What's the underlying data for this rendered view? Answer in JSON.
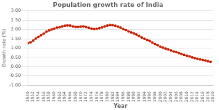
{
  "chart_data": {
    "type": "line",
    "title": "Population growth rate of India",
    "xlabel": "Year",
    "ylabel": "Growth rate (%)",
    "color": "#cc2200",
    "marker": "circle",
    "grid": true,
    "x": [
      1950,
      1951,
      1952,
      1953,
      1954,
      1955,
      1956,
      1957,
      1958,
      1959,
      1960,
      1961,
      1962,
      1963,
      1964,
      1965,
      1966,
      1967,
      1968,
      1969,
      1970,
      1971,
      1972,
      1973,
      1974,
      1975,
      1976,
      1977,
      1978,
      1979,
      1980,
      1981,
      1982,
      1983,
      1984,
      1985,
      1986,
      1987,
      1988,
      1989,
      1990,
      1991,
      1992,
      1993,
      1994,
      1995,
      1996,
      1997,
      1998,
      1999,
      2000,
      2001,
      2002,
      2003,
      2004,
      2005,
      2006,
      2007,
      2008,
      2009,
      2010,
      2011,
      2012,
      2013,
      2014,
      2015,
      2016,
      2017,
      2018,
      2019
    ],
    "values": [
      1.26,
      1.31,
      1.4,
      1.51,
      1.6,
      1.69,
      1.78,
      1.88,
      1.95,
      2.0,
      2.05,
      2.1,
      2.12,
      2.17,
      2.2,
      2.22,
      2.21,
      2.17,
      2.14,
      2.14,
      2.16,
      2.17,
      2.14,
      2.09,
      2.05,
      2.03,
      2.04,
      2.07,
      2.11,
      2.17,
      2.21,
      2.24,
      2.23,
      2.2,
      2.16,
      2.1,
      2.03,
      1.97,
      1.9,
      1.84,
      1.79,
      1.73,
      1.65,
      1.57,
      1.5,
      1.44,
      1.38,
      1.3,
      1.22,
      1.15,
      1.08,
      1.02,
      0.97,
      0.93,
      0.87,
      0.82,
      0.78,
      0.73,
      0.68,
      0.63,
      0.59,
      0.55,
      0.5,
      0.46,
      0.42,
      0.39,
      0.36,
      0.33,
      0.29,
      0.26
    ],
    "xlim": [
      1950,
      2020
    ],
    "xticks": [
      1950,
      1952,
      1954,
      1956,
      1958,
      1960,
      1962,
      1964,
      1966,
      1968,
      1970,
      1972,
      1974,
      1976,
      1978,
      1980,
      1982,
      1984,
      1986,
      1988,
      1990,
      1992,
      1994,
      1996,
      1998,
      2000,
      2002,
      2004,
      2006,
      2008,
      2010,
      2012,
      2014,
      2016,
      2018,
      2020
    ],
    "ylim": [
      -1.0,
      3.0
    ],
    "yticks": [
      {
        "value": -1.0,
        "label": "-1.00"
      },
      {
        "value": -0.5,
        "label": "-0.50"
      },
      {
        "value": 0.0,
        "label": "0.00"
      },
      {
        "value": 0.5,
        "label": "0.50"
      },
      {
        "value": 1.0,
        "label": "1.00"
      },
      {
        "value": 1.5,
        "label": "1.50"
      },
      {
        "value": 2.0,
        "label": "2.00"
      },
      {
        "value": 2.5,
        "label": "2.50"
      },
      {
        "value": 3.0,
        "label": "3.00"
      }
    ]
  }
}
